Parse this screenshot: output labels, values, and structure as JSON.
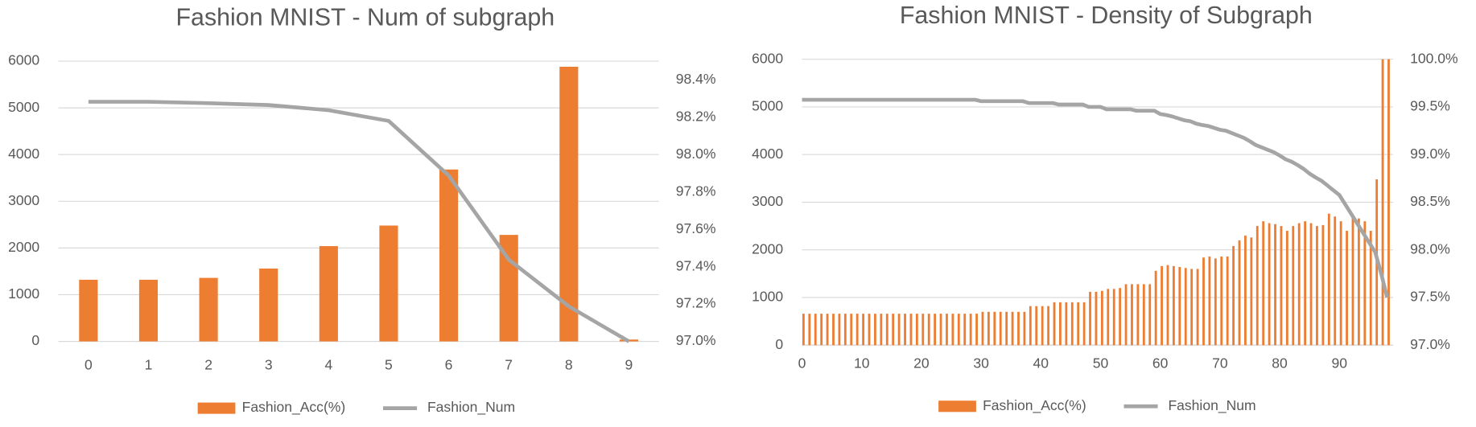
{
  "chart_data": [
    {
      "type": "combo",
      "title": "Fashion MNIST - Num of subgraph",
      "categories": [
        "0",
        "1",
        "2",
        "3",
        "4",
        "5",
        "6",
        "7",
        "8",
        "9"
      ],
      "series": [
        {
          "name": "Fashion_Acc(%)",
          "type": "bar",
          "axis": "y2",
          "color": "#ed7d31",
          "values": [
            97.33,
            97.33,
            97.34,
            97.39,
            97.51,
            97.62,
            97.92,
            97.57,
            98.47,
            97.01
          ]
        },
        {
          "name": "Fashion_Num",
          "type": "line",
          "color": "#a5a5a5",
          "values": [
            5130,
            5130,
            5100,
            5060,
            4950,
            4720,
            3550,
            1750,
            750,
            0
          ]
        }
      ],
      "ylim": [
        0,
        6000
      ],
      "yticks": [
        0,
        1000,
        2000,
        3000,
        4000,
        5000,
        6000
      ],
      "y2lim": [
        97.0,
        98.5
      ],
      "y2ticks": [
        {
          "value": 97.0,
          "label": "97.0%"
        },
        {
          "value": 97.2,
          "label": "97.2%"
        },
        {
          "value": 97.4,
          "label": "97.4%"
        },
        {
          "value": 97.6,
          "label": "97.6%"
        },
        {
          "value": 97.8,
          "label": "97.8%"
        },
        {
          "value": 98.0,
          "label": "98.0%"
        },
        {
          "value": 98.2,
          "label": "98.2%"
        },
        {
          "value": 98.4,
          "label": "98.4%"
        }
      ],
      "grid": true,
      "legend": "bottom"
    },
    {
      "type": "combo",
      "title": "Fashion MNIST - Density of Subgraph",
      "x": [
        0,
        1,
        2,
        3,
        4,
        5,
        6,
        7,
        8,
        9,
        10,
        11,
        12,
        13,
        14,
        15,
        16,
        17,
        18,
        19,
        20,
        21,
        22,
        23,
        24,
        25,
        26,
        27,
        28,
        29,
        30,
        31,
        32,
        33,
        34,
        35,
        36,
        37,
        38,
        39,
        40,
        41,
        42,
        43,
        44,
        45,
        46,
        47,
        48,
        49,
        50,
        51,
        52,
        53,
        54,
        55,
        56,
        57,
        58,
        59,
        60,
        61,
        62,
        63,
        64,
        65,
        66,
        67,
        68,
        69,
        70,
        71,
        72,
        73,
        74,
        75,
        76,
        77,
        78,
        79,
        80,
        81,
        82,
        83,
        84,
        85,
        86,
        87,
        88,
        89,
        90,
        91,
        92,
        93,
        94,
        95,
        96,
        97,
        98
      ],
      "series": [
        {
          "name": "Fashion_Acc(%)",
          "type": "bar",
          "axis": "y2",
          "color": "#ed7d31",
          "values": [
            97.33,
            97.33,
            97.33,
            97.33,
            97.33,
            97.33,
            97.33,
            97.33,
            97.33,
            97.33,
            97.33,
            97.33,
            97.33,
            97.33,
            97.33,
            97.33,
            97.33,
            97.33,
            97.33,
            97.33,
            97.33,
            97.33,
            97.33,
            97.33,
            97.33,
            97.33,
            97.33,
            97.33,
            97.33,
            97.33,
            97.35,
            97.35,
            97.35,
            97.35,
            97.35,
            97.35,
            97.35,
            97.35,
            97.41,
            97.41,
            97.41,
            97.41,
            97.45,
            97.45,
            97.45,
            97.45,
            97.45,
            97.45,
            97.56,
            97.56,
            97.57,
            97.59,
            97.59,
            97.6,
            97.64,
            97.64,
            97.64,
            97.64,
            97.64,
            97.78,
            97.83,
            97.84,
            97.83,
            97.82,
            97.81,
            97.8,
            97.8,
            97.92,
            97.93,
            97.91,
            97.93,
            97.93,
            98.04,
            98.1,
            98.15,
            98.13,
            98.25,
            98.3,
            98.28,
            98.27,
            98.25,
            98.2,
            98.25,
            98.28,
            98.3,
            98.28,
            98.25,
            98.26,
            98.38,
            98.35,
            98.3,
            98.2,
            98.35,
            98.33,
            98.3,
            98.2,
            98.74,
            100.0,
            100.0
          ]
        },
        {
          "name": "Fashion_Num",
          "type": "line",
          "color": "#a5a5a5",
          "values": [
            5150,
            5150,
            5150,
            5150,
            5150,
            5150,
            5150,
            5150,
            5150,
            5150,
            5150,
            5150,
            5150,
            5150,
            5150,
            5150,
            5150,
            5150,
            5150,
            5150,
            5150,
            5150,
            5150,
            5150,
            5150,
            5150,
            5150,
            5150,
            5150,
            5150,
            5120,
            5120,
            5120,
            5120,
            5120,
            5120,
            5120,
            5120,
            5080,
            5080,
            5080,
            5080,
            5080,
            5050,
            5050,
            5050,
            5050,
            5050,
            5000,
            5000,
            5000,
            4950,
            4950,
            4950,
            4950,
            4950,
            4920,
            4920,
            4920,
            4920,
            4850,
            4830,
            4800,
            4760,
            4720,
            4700,
            4650,
            4620,
            4600,
            4560,
            4520,
            4500,
            4450,
            4400,
            4350,
            4280,
            4200,
            4150,
            4100,
            4050,
            3980,
            3900,
            3850,
            3780,
            3700,
            3600,
            3520,
            3450,
            3350,
            3250,
            3150,
            2950,
            2750,
            2550,
            2350,
            2150,
            1950,
            1500,
            1000
          ]
        }
      ],
      "xlim": [
        0,
        99
      ],
      "xticks": [
        0,
        10,
        20,
        30,
        40,
        50,
        60,
        70,
        80,
        90
      ],
      "ylim": [
        0,
        6000
      ],
      "yticks": [
        0,
        1000,
        2000,
        3000,
        4000,
        5000,
        6000
      ],
      "y2lim": [
        97.0,
        100.0
      ],
      "y2ticks": [
        {
          "value": 97.0,
          "label": "97.0%"
        },
        {
          "value": 97.5,
          "label": "97.5%"
        },
        {
          "value": 98.0,
          "label": "98.0%"
        },
        {
          "value": 98.5,
          "label": "98.5%"
        },
        {
          "value": 99.0,
          "label": "99.0%"
        },
        {
          "value": 99.5,
          "label": "99.5%"
        },
        {
          "value": 100.0,
          "label": "100.0%"
        }
      ],
      "grid": true,
      "legend": "bottom"
    }
  ]
}
